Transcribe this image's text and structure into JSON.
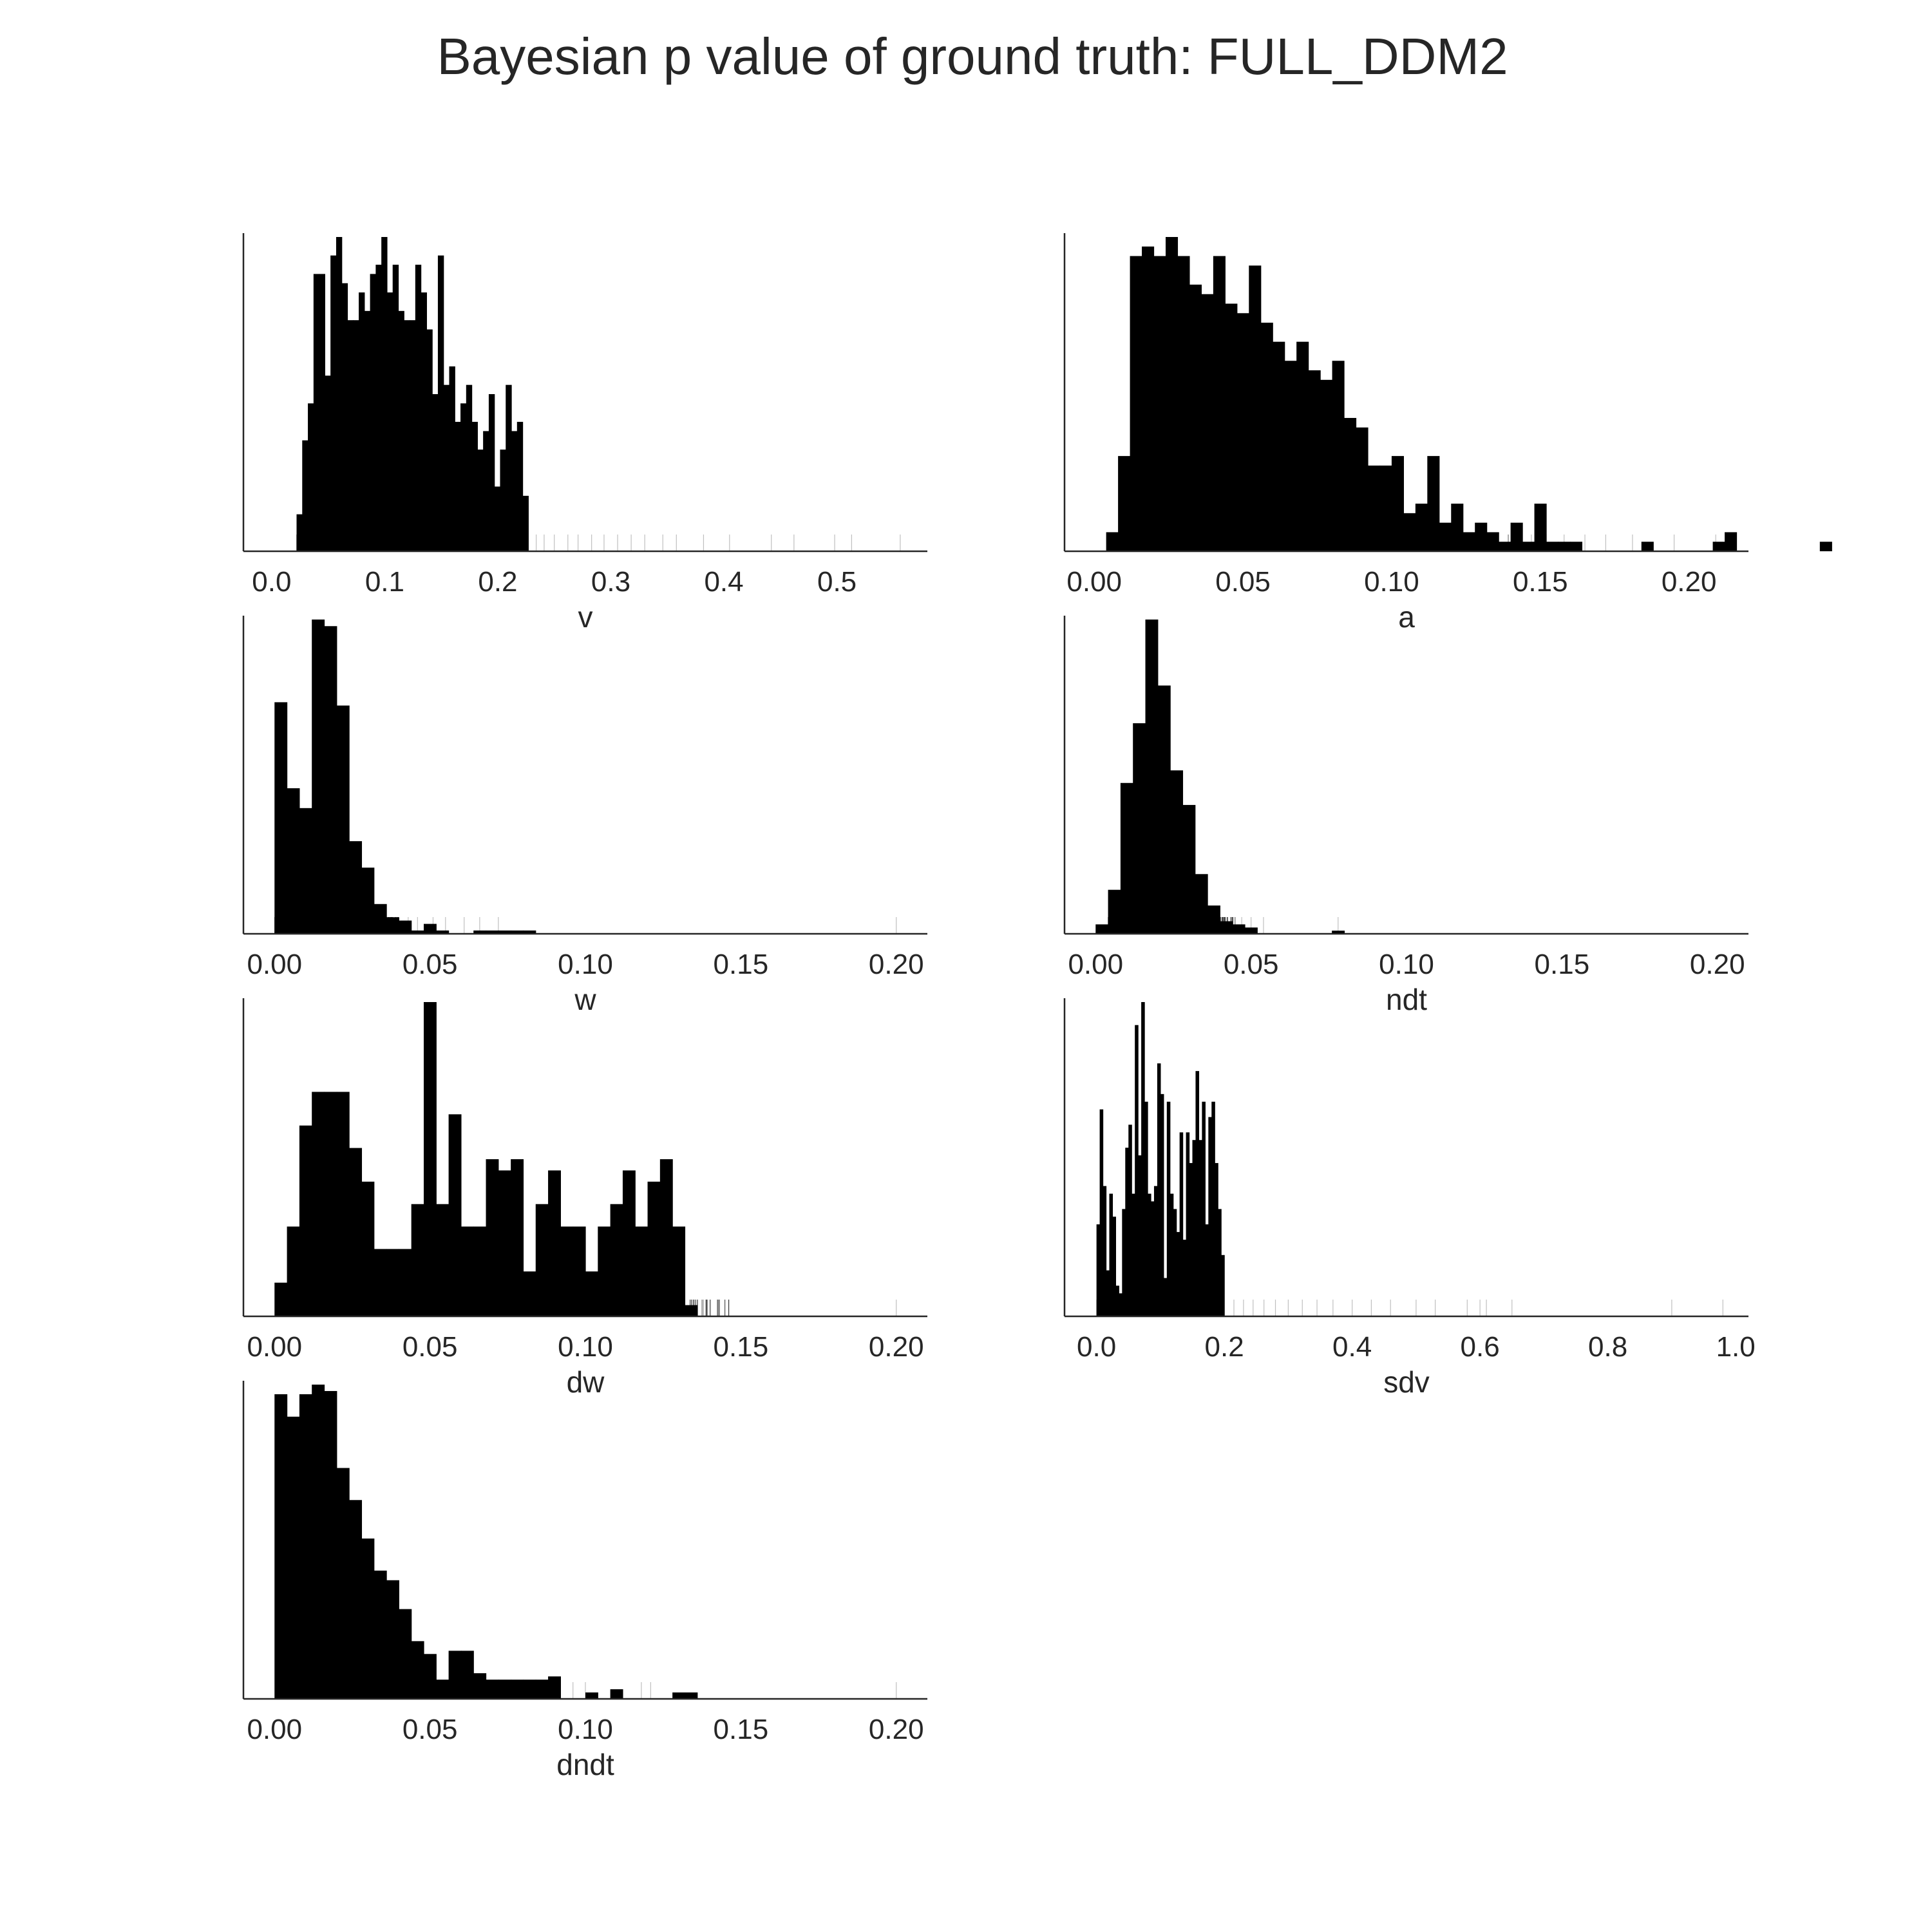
{
  "title": "Bayesian p value of ground truth: FULL_DDM2",
  "chart_data": [
    {
      "type": "histogram",
      "xlabel": "v",
      "xlim": [
        -0.025,
        0.58
      ],
      "xticks": [
        0.0,
        0.1,
        0.2,
        0.3,
        0.4,
        0.5
      ],
      "tick_labels": [
        "0.0",
        "0.1",
        "0.2",
        "0.3",
        "0.4",
        "0.5"
      ],
      "ylabel": "",
      "yticks": "none",
      "bins": {
        "start": 0.022,
        "width": 0.005,
        "heights": [
          4,
          12,
          16,
          30,
          30,
          19,
          32,
          34,
          29,
          25,
          25,
          28,
          26,
          30,
          31,
          34,
          28,
          31,
          26,
          25,
          25,
          31,
          28,
          24,
          17,
          32,
          18,
          20,
          14,
          16,
          18,
          14,
          11,
          13,
          17,
          7,
          11,
          18,
          13,
          14,
          6
        ]
      },
      "rug": {
        "dense_range": [
          0.022,
          0.2
        ],
        "sparse": [
          0.225,
          0.234,
          0.241,
          0.25,
          0.262,
          0.271,
          0.283,
          0.294,
          0.306,
          0.318,
          0.33,
          0.346,
          0.358,
          0.382,
          0.405,
          0.442,
          0.462,
          0.498,
          0.513,
          0.556
        ]
      }
    },
    {
      "type": "histogram",
      "xlabel": "a",
      "xlim": [
        -0.01,
        0.22
      ],
      "xticks": [
        0.0,
        0.05,
        0.1,
        0.15,
        0.2
      ],
      "tick_labels": [
        "0.00",
        "0.05",
        "0.10",
        "0.15",
        "0.20"
      ],
      "ylabel": "",
      "yticks": "none",
      "bins": {
        "start": 0.004,
        "width": 0.004,
        "heights": [
          2,
          10,
          31,
          32,
          31,
          33,
          31,
          28,
          27,
          31,
          26,
          25,
          30,
          24,
          22,
          20,
          22,
          19,
          18,
          20,
          14,
          13,
          9,
          9,
          10,
          4,
          5,
          10,
          3,
          5,
          2,
          3,
          2,
          1,
          3,
          1,
          5,
          1,
          1,
          1,
          0,
          0,
          0,
          0,
          0,
          1,
          0,
          0,
          0,
          0,
          0,
          1,
          2,
          0,
          0,
          0,
          0,
          0,
          0,
          0,
          1
        ]
      },
      "rug": {
        "dense_range": [
          0.004,
          0.14
        ],
        "sparse": [
          0.142,
          0.147,
          0.152,
          0.158,
          0.165,
          0.172,
          0.181,
          0.195,
          0.209
        ]
      }
    },
    {
      "type": "histogram",
      "xlabel": "w",
      "xlim": [
        -0.01,
        0.21
      ],
      "xticks": [
        0.0,
        0.05,
        0.1,
        0.15,
        0.2
      ],
      "tick_labels": [
        "0.00",
        "0.05",
        "0.10",
        "0.15",
        "0.20"
      ],
      "ylabel": "",
      "yticks": "none",
      "bins": {
        "start": 0.0,
        "width": 0.004,
        "heights": [
          70,
          44,
          38,
          95,
          93,
          69,
          28,
          20,
          9,
          5,
          4,
          1,
          3,
          1,
          0,
          0,
          1,
          1,
          1,
          1,
          1
        ]
      },
      "rug": {
        "dense_range": [
          0.0,
          0.04
        ],
        "sparse": [
          0.043,
          0.046,
          0.051,
          0.055,
          0.061,
          0.066,
          0.072,
          0.2
        ]
      }
    },
    {
      "type": "histogram",
      "xlabel": "ndt",
      "xlim": [
        -0.01,
        0.21
      ],
      "xticks": [
        0.0,
        0.05,
        0.1,
        0.15,
        0.2
      ],
      "tick_labels": [
        "0.00",
        "0.05",
        "0.10",
        "0.15",
        "0.20"
      ],
      "ylabel": "",
      "yticks": "none",
      "bins": {
        "start": 0.0,
        "width": 0.004,
        "heights": [
          3,
          14,
          48,
          67,
          100,
          79,
          52,
          41,
          19,
          9,
          4,
          3,
          2,
          0,
          0,
          0,
          0,
          0,
          0,
          1
        ]
      },
      "rug": {
        "dense_range": [
          0.004,
          0.045
        ],
        "sparse": [
          0.047,
          0.05,
          0.054,
          0.078
        ]
      }
    },
    {
      "type": "histogram",
      "xlabel": "dw",
      "xlim": [
        -0.01,
        0.21
      ],
      "xticks": [
        0.0,
        0.05,
        0.1,
        0.15,
        0.2
      ],
      "tick_labels": [
        "0.00",
        "0.05",
        "0.10",
        "0.15",
        "0.20"
      ],
      "ylabel": "",
      "yticks": "none",
      "bins": {
        "start": 0.0,
        "width": 0.004,
        "heights": [
          3,
          8,
          17,
          20,
          20,
          20,
          15,
          12,
          6,
          6,
          6,
          10,
          28,
          10,
          18,
          8,
          8,
          14,
          13,
          14,
          4,
          10,
          13,
          8,
          8,
          4,
          8,
          10,
          13,
          8,
          12,
          14,
          8,
          1
        ]
      },
      "rug": {
        "dense_range": [
          0.0,
          0.147
        ],
        "sparse": [
          0.2
        ]
      }
    },
    {
      "type": "histogram",
      "xlabel": "sdv",
      "xlim": [
        -0.05,
        1.02
      ],
      "xticks": [
        0.0,
        0.2,
        0.4,
        0.6,
        0.8,
        1.0
      ],
      "tick_labels": [
        "0.0",
        "0.2",
        "0.4",
        "0.6",
        "0.8",
        "1.0"
      ],
      "ylabel": "",
      "yticks": "none",
      "bins": {
        "start": 0.0,
        "width": 0.005,
        "heights": [
          12,
          27,
          17,
          6,
          16,
          13,
          4,
          3,
          14,
          22,
          25,
          16,
          38,
          21,
          41,
          28,
          16,
          15,
          17,
          33,
          29,
          5,
          28,
          16,
          14,
          11,
          24,
          10,
          24,
          20,
          23,
          32,
          23,
          28,
          12,
          26,
          28,
          20,
          14,
          8
        ]
      },
      "rug": {
        "dense_range": [
          0.0,
          0.2
        ],
        "sparse": [
          0.215,
          0.23,
          0.245,
          0.262,
          0.28,
          0.3,
          0.322,
          0.345,
          0.37,
          0.4,
          0.43,
          0.46,
          0.5,
          0.53,
          0.58,
          0.6,
          0.61,
          0.65,
          0.9,
          0.98
        ]
      }
    },
    {
      "type": "histogram",
      "xlabel": "dndt",
      "xlim": [
        -0.01,
        0.21
      ],
      "xticks": [
        0.0,
        0.05,
        0.1,
        0.15,
        0.2
      ],
      "tick_labels": [
        "0.00",
        "0.05",
        "0.10",
        "0.15",
        "0.20"
      ],
      "ylabel": "",
      "yticks": "none",
      "bins": {
        "start": 0.0,
        "width": 0.004,
        "heights": [
          95,
          88,
          95,
          98,
          96,
          72,
          62,
          50,
          40,
          37,
          28,
          18,
          14,
          6,
          15,
          15,
          8,
          6,
          6,
          6,
          6,
          6,
          7,
          0,
          0,
          2,
          0,
          3,
          0,
          0,
          0,
          0,
          2,
          2
        ]
      },
      "rug": {
        "dense_range": [
          0.0,
          0.085
        ],
        "sparse": [
          0.096,
          0.1,
          0.118,
          0.121,
          0.2
        ]
      }
    }
  ]
}
